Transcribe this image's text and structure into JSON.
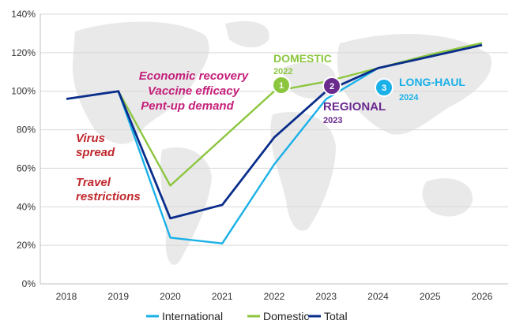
{
  "chart_data": {
    "type": "line",
    "x": [
      2018,
      2019,
      2020,
      2021,
      2022,
      2023,
      2024,
      2025,
      2026
    ],
    "ylim": [
      0,
      140
    ],
    "y_ticks": [
      "0%",
      "20%",
      "40%",
      "60%",
      "80%",
      "100%",
      "120%",
      "140%"
    ],
    "x_ticks": [
      "2018",
      "2019",
      "2020",
      "2021",
      "2022",
      "2023",
      "2024",
      "2025",
      "2026"
    ],
    "grid": true,
    "legend_position": "bottom",
    "series": [
      {
        "name": "International",
        "color": "#1ab0e8",
        "values": [
          null,
          100,
          24,
          21,
          62,
          96,
          112,
          118,
          124
        ]
      },
      {
        "name": "Domestic",
        "color": "#8cc63f",
        "values": [
          null,
          100,
          51,
          null,
          100,
          105,
          112,
          119,
          125
        ]
      },
      {
        "name": "Total",
        "color": "#0a2d8c",
        "values": [
          96,
          100,
          34,
          41,
          76,
          100,
          112,
          118,
          124
        ]
      }
    ],
    "annotations": {
      "left_lines": [
        "Virus",
        "spread",
        "Travel",
        "restrictions"
      ],
      "center_lines": [
        "Economic recovery",
        "Vaccine efficacy",
        "Pent-up demand"
      ],
      "left_color": "#c0282d",
      "center_color": "#c41f7a"
    },
    "phases": [
      {
        "number": "1",
        "label": "DOMESTIC",
        "year": "2022",
        "color": "#8cc63f"
      },
      {
        "number": "2",
        "label": "REGIONAL",
        "year": "2023",
        "color": "#6a2a8e"
      },
      {
        "number": "3",
        "label": "LONG-HAUL",
        "year": "2024",
        "color": "#1ab0e8"
      }
    ]
  }
}
